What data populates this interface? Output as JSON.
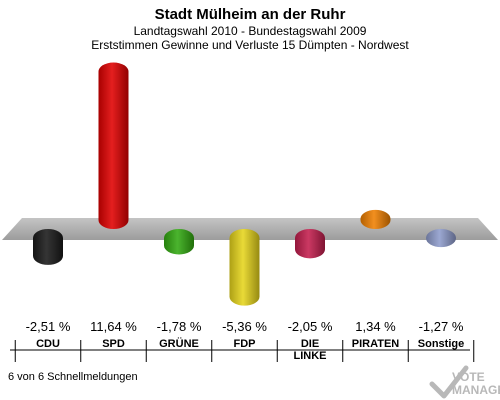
{
  "chart_data": {
    "type": "bar",
    "title": "Stadt Mülheim an der Ruhr",
    "subtitle": "Landtagswahl 2010 - Bundestagswahl 2009",
    "subtitle2": "Erststimmen Gewinne und Verluste 15 Dümpten - Nordwest",
    "categories": [
      "CDU",
      "SPD",
      "GRÜNE",
      "FDP",
      "DIE LINKE",
      "PIRATEN",
      "Sonstige"
    ],
    "category_lines": [
      [
        "CDU"
      ],
      [
        "SPD"
      ],
      [
        "GRÜNE"
      ],
      [
        "FDP"
      ],
      [
        "DIE",
        "LINKE"
      ],
      [
        "PIRATEN"
      ],
      [
        "Sonstige"
      ]
    ],
    "values": [
      -2.51,
      11.64,
      -1.78,
      -5.36,
      -2.05,
      1.34,
      -1.27
    ],
    "value_labels": [
      "-2,51 %",
      "11,64 %",
      "-1,78 %",
      "-5,36 %",
      "-2,05 %",
      "1,34 %",
      "-1,27 %"
    ],
    "colors": [
      "#1a1a1a",
      "#e00000",
      "#33aa11",
      "#e6d51c",
      "#c41e4e",
      "#f08000",
      "#8f9ccc"
    ],
    "grid": false
  },
  "footer": {
    "count_text": "6 von 6 Schnellmeldungen",
    "logo_line1": "VOTE",
    "logo_line2": "MANAGER"
  }
}
